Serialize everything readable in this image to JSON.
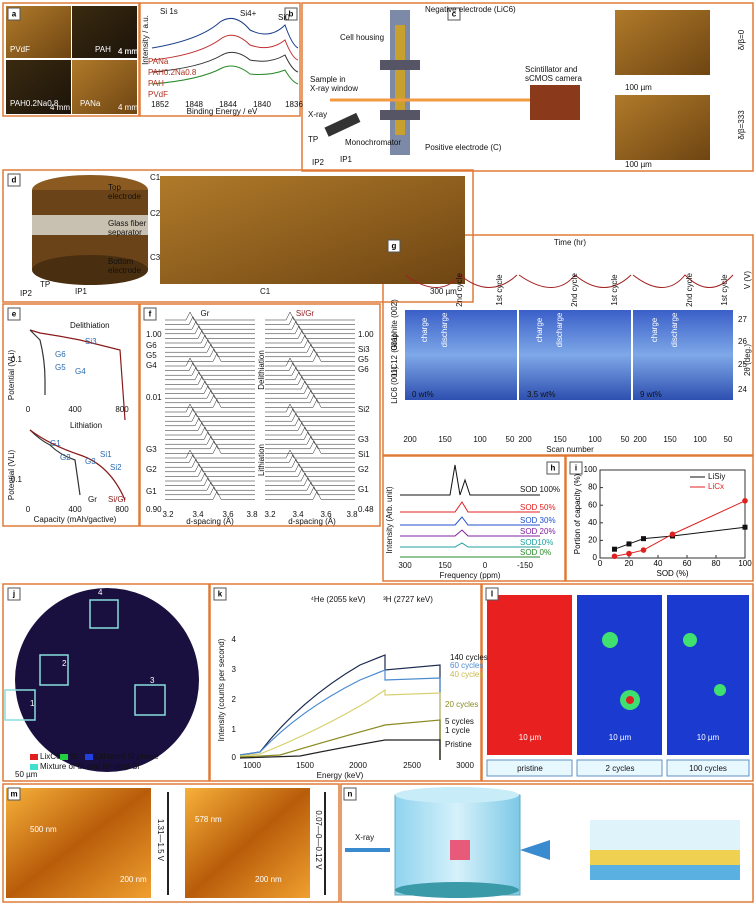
{
  "panels": [
    {
      "label": "a",
      "texts": [
        "PVdF",
        "4 mm",
        "PAH",
        "4 mm",
        "PAH0.2Na0.8",
        "4 mm",
        "PANa",
        "4 mm"
      ]
    },
    {
      "label": "b",
      "texts": [
        "Si 1s",
        "Si4+",
        "Si0",
        "PANa",
        "PAH0.2Na0.8",
        "PAH",
        "PVdF",
        "Binding Energy / eV",
        "Intensity / a.u.",
        "1852",
        "1848",
        "1844",
        "1840",
        "1836"
      ]
    },
    {
      "label": "c",
      "texts": [
        "Negative electrode (LiC6)",
        "Cell housing",
        "Sample in",
        "X-ray window",
        "Scintillator and",
        "sCMOS camera",
        "X-ray",
        "Monochromator",
        "Positive electrode (C)",
        "TP",
        "IP1",
        "IP2",
        "100 µm",
        "100 µm",
        "δ/β=0",
        "δ/β=333"
      ]
    },
    {
      "label": "d",
      "texts": [
        "C1",
        "Top",
        "electrode",
        "C2",
        "Glass fiber",
        "separator",
        "C3",
        "Bottom",
        "electrode",
        "TP",
        "IP1",
        "IP2",
        "C1",
        "300 µm"
      ]
    },
    {
      "label": "e",
      "texts": [
        "Delithiation",
        "Si3",
        "G6",
        "G5",
        "G4",
        "Potential (VLi)",
        "0.1",
        "0",
        "400",
        "800",
        "Lithiation",
        "G1",
        "G2",
        "G3",
        "Si1",
        "Si2",
        "Gr",
        "Si/Gr",
        "Potential (VLi)",
        "0.1",
        "0",
        "400",
        "800",
        "Capacity (mAh/gactive)"
      ]
    },
    {
      "label": "f",
      "texts": [
        "Gr",
        "Si/Gr",
        "1.00",
        "G6",
        "G5",
        "G4",
        "0.01",
        "G3",
        "G2",
        "G1",
        "0.90",
        "1.00",
        "Si3",
        "G5",
        "G6",
        "Si2",
        "G3",
        "Si1",
        "G2",
        "G1",
        "0.48",
        "Delithiation",
        "Lithiation",
        "3.2",
        "3.4",
        "3.6",
        "3.8",
        "d-spacing (Å)",
        "3.2",
        "3.4",
        "3.6",
        "3.8",
        "d-spacing (Å)"
      ]
    },
    {
      "label": "g",
      "texts": [
        "Time (hr)",
        "0 wt%",
        "3.5 wt%",
        "9 wt%",
        "Scan number",
        "2θ (deg.)",
        "V (V)",
        "Graphite (002)",
        "LiC12 (001)",
        "LiC6 (001)",
        "charge",
        "discharge",
        "charge",
        "discharge",
        "charge",
        "discharge",
        "2nd cycle",
        "1st cycle",
        "2nd cycle",
        "1st cycle",
        "2nd cycle",
        "1st cycle",
        "27",
        "26",
        "25",
        "24",
        "200",
        "150",
        "100",
        "50",
        "200",
        "150",
        "100",
        "50",
        "200",
        "150",
        "100",
        "50"
      ]
    },
    {
      "label": "h",
      "texts": [
        "SOD 100%",
        "SOD 50%",
        "SOD 30%",
        "SOD 20%",
        "SOD10%",
        "SOD 0%",
        "Intensity (Arb. unit)",
        "Frequency (ppm)",
        "300",
        "150",
        "0",
        "-150"
      ]
    },
    {
      "label": "i",
      "chart": {
        "type": "line",
        "xlabel": "SOD (%)",
        "ylabel": "Portion of capacity (%)",
        "x": [
          10,
          20,
          30,
          50,
          100
        ],
        "series": [
          {
            "name": "LiSiy",
            "color": "#111111",
            "values": [
              10,
              16,
              22,
              25,
              35
            ]
          },
          {
            "name": "LiCx",
            "color": "#e02020",
            "values": [
              2,
              5,
              9,
              27,
              65
            ]
          }
        ],
        "xlim": [
          0,
          100
        ],
        "ylim": [
          0,
          100
        ],
        "xticks": [
          0,
          20,
          40,
          60,
          80,
          100
        ],
        "yticks": [
          0,
          20,
          40,
          60,
          80,
          100
        ]
      }
    },
    {
      "label": "j",
      "texts": [
        "1",
        "2",
        "3",
        "4",
        "LixC6",
        "Si",
        "Lithiated Si phase",
        "Mixture of Si and lithiated Si",
        "50 µm"
      ]
    },
    {
      "label": "k",
      "texts": [
        "⁴He (2055 keV)",
        "³H (2727 keV)",
        "140 cycles",
        "60 cycles",
        "40 cycles",
        "20 cycles",
        "5 cycles",
        "1 cycle",
        "Pristine",
        "Intensity (counts per second)",
        "Energy (keV)",
        "0",
        "1",
        "2",
        "3",
        "4",
        "1000",
        "1500",
        "2000",
        "2500",
        "3000"
      ]
    },
    {
      "label": "l",
      "texts": [
        "10 µm",
        "10 µm",
        "10 µm",
        "pristine",
        "2 cycles",
        "100 cycles"
      ]
    },
    {
      "label": "m",
      "texts": [
        "500 nm",
        "200 nm",
        "1.31—1.5 V",
        "578 nm",
        "200 nm",
        "0.07—0—0.12 V"
      ]
    },
    {
      "label": "n",
      "texts": [
        "X-ray"
      ]
    }
  ]
}
